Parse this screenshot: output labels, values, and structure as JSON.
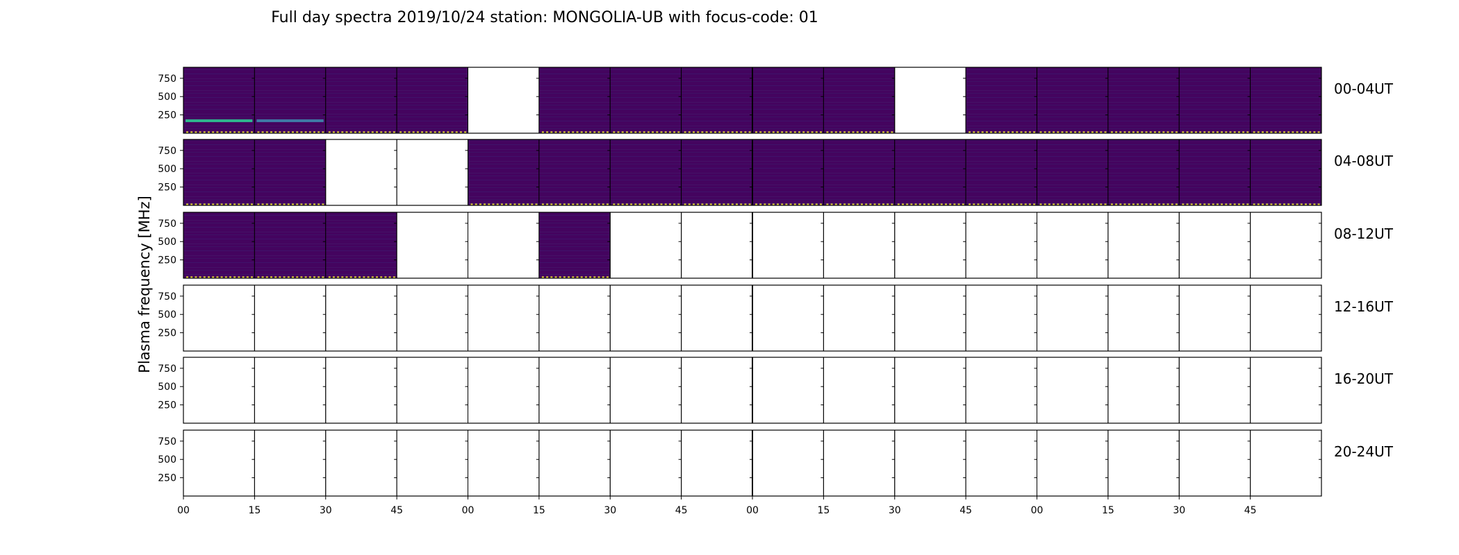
{
  "chart_data": {
    "type": "heatmap",
    "title": "Full day spectra 2019/10/24 station: MONGOLIA-UB with focus-code: 01",
    "ylabel": "Plasma frequency [MHz]",
    "xlabel": "",
    "ylim": [
      0,
      900
    ],
    "yticks": [
      250,
      500,
      750
    ],
    "xtick_labels": [
      "00",
      "15",
      "30",
      "45",
      "00",
      "15",
      "30",
      "45",
      "00",
      "15",
      "30",
      "45",
      "00",
      "15",
      "30",
      "45"
    ],
    "colormap": "viridis",
    "colors": {
      "background": "#44045f",
      "stripe": "#3b1f73",
      "burst_line": "#2fb58e",
      "burst_line_weak": "#3f7aa6",
      "marker": "#f0e43a",
      "axis": "#000000"
    },
    "rows": [
      {
        "label": "00-04UT",
        "filled": [
          1,
          1,
          1,
          1,
          0,
          1,
          1,
          1,
          1,
          1,
          0,
          1,
          1,
          1,
          1,
          1
        ],
        "bursts": [
          {
            "panel": 0,
            "freq": 170,
            "intensity": "strong"
          },
          {
            "panel": 1,
            "freq": 170,
            "intensity": "weak"
          }
        ]
      },
      {
        "label": "04-08UT",
        "filled": [
          1,
          1,
          0,
          0,
          1,
          1,
          1,
          1,
          1,
          1,
          1,
          1,
          1,
          1,
          1,
          1
        ],
        "bursts": []
      },
      {
        "label": "08-12UT",
        "filled": [
          1,
          1,
          1,
          0,
          0,
          1,
          0,
          0,
          0,
          0,
          0,
          0,
          0,
          0,
          0,
          0
        ],
        "bursts": []
      },
      {
        "label": "12-16UT",
        "filled": [
          0,
          0,
          0,
          0,
          0,
          0,
          0,
          0,
          0,
          0,
          0,
          0,
          0,
          0,
          0,
          0
        ],
        "bursts": []
      },
      {
        "label": "16-20UT",
        "filled": [
          0,
          0,
          0,
          0,
          0,
          0,
          0,
          0,
          0,
          0,
          0,
          0,
          0,
          0,
          0,
          0
        ],
        "bursts": []
      },
      {
        "label": "20-24UT",
        "filled": [
          0,
          0,
          0,
          0,
          0,
          0,
          0,
          0,
          0,
          0,
          0,
          0,
          0,
          0,
          0,
          0
        ],
        "bursts": []
      }
    ]
  }
}
